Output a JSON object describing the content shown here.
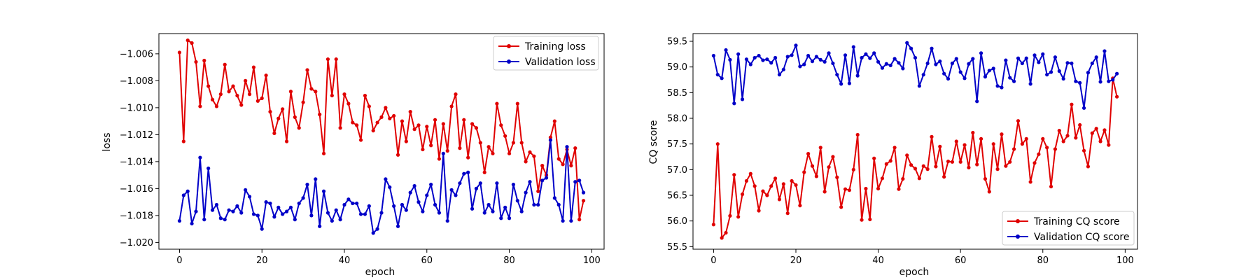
{
  "figure": {
    "background": "#ffffff"
  },
  "chart_data": [
    {
      "type": "line",
      "xlabel": "epoch",
      "ylabel": "loss",
      "xlim": [
        -5,
        103
      ],
      "ylim": [
        -1.0205,
        -1.0045
      ],
      "xticks": [
        0,
        20,
        40,
        60,
        80,
        100
      ],
      "xtick_labels": [
        "0",
        "20",
        "40",
        "60",
        "80",
        "100"
      ],
      "yticks": [
        -1.02,
        -1.018,
        -1.016,
        -1.014,
        -1.012,
        -1.01,
        -1.008,
        -1.006
      ],
      "ytick_labels": [
        "−1.020",
        "−1.018",
        "−1.016",
        "−1.014",
        "−1.012",
        "−1.010",
        "−1.008",
        "−1.006"
      ],
      "grid": false,
      "legend_position": "top-right",
      "x": [
        0,
        1,
        2,
        3,
        4,
        5,
        6,
        7,
        8,
        9,
        10,
        11,
        12,
        13,
        14,
        15,
        16,
        17,
        18,
        19,
        20,
        21,
        22,
        23,
        24,
        25,
        26,
        27,
        28,
        29,
        30,
        31,
        32,
        33,
        34,
        35,
        36,
        37,
        38,
        39,
        40,
        41,
        42,
        43,
        44,
        45,
        46,
        47,
        48,
        49,
        50,
        51,
        52,
        53,
        54,
        55,
        56,
        57,
        58,
        59,
        60,
        61,
        62,
        63,
        64,
        65,
        66,
        67,
        68,
        69,
        70,
        71,
        72,
        73,
        74,
        75,
        76,
        77,
        78,
        79,
        80,
        81,
        82,
        83,
        84,
        85,
        86,
        87,
        88,
        89,
        90,
        91,
        92,
        93,
        94,
        95,
        96,
        97,
        98
      ],
      "series": [
        {
          "name": "Training loss",
          "color": "#e00000",
          "values": [
            -1.0059,
            -1.0125,
            -1.005,
            -1.0052,
            -1.0066,
            -1.0099,
            -1.0065,
            -1.0084,
            -1.0094,
            -1.0099,
            -1.009,
            -1.0068,
            -1.0088,
            -1.0084,
            -1.0091,
            -1.0098,
            -1.008,
            -1.009,
            -1.007,
            -1.0095,
            -1.0093,
            -1.0076,
            -1.0103,
            -1.0119,
            -1.0108,
            -1.0101,
            -1.0125,
            -1.0088,
            -1.0107,
            -1.0115,
            -1.0096,
            -1.0072,
            -1.0086,
            -1.0088,
            -1.0105,
            -1.0134,
            -1.0064,
            -1.0091,
            -1.0064,
            -1.0115,
            -1.009,
            -1.0097,
            -1.0111,
            -1.0113,
            -1.0124,
            -1.0091,
            -1.0099,
            -1.0117,
            -1.0111,
            -1.0107,
            -1.01,
            -1.0108,
            -1.0106,
            -1.0135,
            -1.011,
            -1.0125,
            -1.0103,
            -1.0116,
            -1.0113,
            -1.0131,
            -1.0114,
            -1.0128,
            -1.0109,
            -1.0138,
            -1.0112,
            -1.0132,
            -1.0099,
            -1.009,
            -1.013,
            -1.0109,
            -1.0137,
            -1.0112,
            -1.0115,
            -1.0126,
            -1.0148,
            -1.0129,
            -1.0134,
            -1.0097,
            -1.0113,
            -1.0121,
            -1.0134,
            -1.0126,
            -1.0097,
            -1.0126,
            -1.014,
            -1.0133,
            -1.0136,
            -1.0162,
            -1.0143,
            -1.015,
            -1.0122,
            -1.011,
            -1.0138,
            -1.0142,
            -1.0131,
            -1.0143,
            -1.013,
            -1.0183,
            -1.0169
          ]
        },
        {
          "name": "Validation loss",
          "color": "#0000c8",
          "values": [
            -1.0184,
            -1.0165,
            -1.0162,
            -1.0186,
            -1.0177,
            -1.0137,
            -1.0183,
            -1.0145,
            -1.0176,
            -1.0172,
            -1.0182,
            -1.0183,
            -1.0176,
            -1.0177,
            -1.0173,
            -1.0178,
            -1.0161,
            -1.0166,
            -1.0179,
            -1.018,
            -1.019,
            -1.017,
            -1.0171,
            -1.0181,
            -1.0174,
            -1.0179,
            -1.0177,
            -1.0174,
            -1.0183,
            -1.0171,
            -1.0167,
            -1.0157,
            -1.018,
            -1.0153,
            -1.0188,
            -1.0162,
            -1.0178,
            -1.0184,
            -1.0176,
            -1.0183,
            -1.0172,
            -1.0168,
            -1.0171,
            -1.0171,
            -1.0179,
            -1.0179,
            -1.0173,
            -1.0193,
            -1.019,
            -1.0178,
            -1.0153,
            -1.0159,
            -1.0173,
            -1.0188,
            -1.0172,
            -1.0176,
            -1.0163,
            -1.0158,
            -1.017,
            -1.0177,
            -1.0165,
            -1.0157,
            -1.0172,
            -1.0178,
            -1.0134,
            -1.0184,
            -1.0161,
            -1.0165,
            -1.0156,
            -1.0149,
            -1.0148,
            -1.0175,
            -1.016,
            -1.0156,
            -1.0178,
            -1.0172,
            -1.0177,
            -1.0156,
            -1.0182,
            -1.0174,
            -1.0182,
            -1.0157,
            -1.0169,
            -1.0177,
            -1.0163,
            -1.0155,
            -1.0172,
            -1.0172,
            -1.0154,
            -1.0152,
            -1.0124,
            -1.0167,
            -1.0172,
            -1.0184,
            -1.0129,
            -1.0184,
            -1.0155,
            -1.0154,
            -1.0163
          ]
        }
      ]
    },
    {
      "type": "line",
      "xlabel": "epoch",
      "ylabel": "CQ score",
      "xlim": [
        -5,
        103
      ],
      "ylim": [
        55.45,
        59.65
      ],
      "xticks": [
        0,
        20,
        40,
        60,
        80,
        100
      ],
      "xtick_labels": [
        "0",
        "20",
        "40",
        "60",
        "80",
        "100"
      ],
      "yticks": [
        55.5,
        56.0,
        56.5,
        57.0,
        57.5,
        58.0,
        58.5,
        59.0,
        59.5
      ],
      "ytick_labels": [
        "55.5",
        "56.0",
        "56.5",
        "57.0",
        "57.5",
        "58.0",
        "58.5",
        "59.0",
        "59.5"
      ],
      "grid": false,
      "legend_position": "bottom-right",
      "x": [
        0,
        1,
        2,
        3,
        4,
        5,
        6,
        7,
        8,
        9,
        10,
        11,
        12,
        13,
        14,
        15,
        16,
        17,
        18,
        19,
        20,
        21,
        22,
        23,
        24,
        25,
        26,
        27,
        28,
        29,
        30,
        31,
        32,
        33,
        34,
        35,
        36,
        37,
        38,
        39,
        40,
        41,
        42,
        43,
        44,
        45,
        46,
        47,
        48,
        49,
        50,
        51,
        52,
        53,
        54,
        55,
        56,
        57,
        58,
        59,
        60,
        61,
        62,
        63,
        64,
        65,
        66,
        67,
        68,
        69,
        70,
        71,
        72,
        73,
        74,
        75,
        76,
        77,
        78,
        79,
        80,
        81,
        82,
        83,
        84,
        85,
        86,
        87,
        88,
        89,
        90,
        91,
        92,
        93,
        94,
        95,
        96,
        97,
        98
      ],
      "series": [
        {
          "name": "Training CQ score",
          "color": "#e00000",
          "values": [
            55.93,
            57.5,
            55.67,
            55.77,
            56.1,
            56.9,
            56.08,
            56.52,
            56.78,
            56.92,
            56.68,
            56.2,
            56.58,
            56.5,
            56.68,
            56.83,
            56.42,
            56.72,
            56.15,
            56.78,
            56.7,
            56.3,
            56.95,
            57.31,
            57.07,
            56.87,
            57.43,
            56.57,
            57.05,
            57.25,
            56.85,
            56.27,
            56.62,
            56.6,
            57.0,
            57.68,
            56.02,
            56.63,
            56.03,
            57.22,
            56.63,
            56.83,
            57.11,
            57.17,
            57.43,
            56.62,
            56.82,
            57.28,
            57.09,
            57.02,
            56.83,
            57.07,
            57.01,
            57.64,
            57.06,
            57.45,
            56.86,
            57.16,
            57.15,
            57.55,
            57.15,
            57.48,
            57.04,
            57.72,
            57.1,
            57.6,
            56.82,
            56.57,
            57.5,
            57.01,
            57.69,
            57.07,
            57.15,
            57.4,
            57.95,
            57.5,
            57.6,
            56.76,
            57.13,
            57.3,
            57.6,
            57.43,
            56.67,
            57.4,
            57.76,
            57.55,
            57.66,
            58.27,
            57.62,
            57.87,
            57.37,
            57.06,
            57.71,
            57.8,
            57.55,
            57.77,
            57.48,
            58.78,
            58.42
          ]
        },
        {
          "name": "Validation CQ score",
          "color": "#0000c8",
          "values": [
            59.22,
            58.85,
            58.78,
            59.33,
            59.14,
            58.29,
            59.25,
            58.37,
            59.15,
            59.05,
            59.18,
            59.22,
            59.13,
            59.15,
            59.08,
            59.18,
            58.85,
            58.95,
            59.2,
            59.23,
            59.42,
            59.01,
            59.05,
            59.22,
            59.11,
            59.2,
            59.14,
            59.1,
            59.27,
            59.07,
            58.85,
            58.67,
            59.23,
            58.68,
            59.39,
            58.83,
            59.18,
            59.25,
            59.17,
            59.27,
            59.1,
            58.98,
            59.06,
            59.03,
            59.16,
            59.08,
            58.97,
            59.47,
            59.36,
            59.18,
            58.63,
            58.85,
            59.07,
            59.36,
            59.05,
            59.11,
            58.87,
            58.77,
            59.07,
            59.16,
            58.9,
            58.78,
            59.06,
            59.16,
            58.33,
            59.27,
            58.81,
            58.93,
            58.97,
            58.63,
            58.6,
            59.13,
            58.79,
            58.72,
            59.17,
            59.07,
            59.17,
            58.67,
            59.23,
            59.09,
            59.25,
            58.85,
            58.9,
            59.19,
            58.92,
            58.77,
            59.08,
            59.07,
            58.72,
            58.69,
            58.2,
            58.89,
            59.07,
            59.19,
            58.71,
            59.31,
            58.72,
            58.75,
            58.87
          ]
        }
      ]
    }
  ]
}
